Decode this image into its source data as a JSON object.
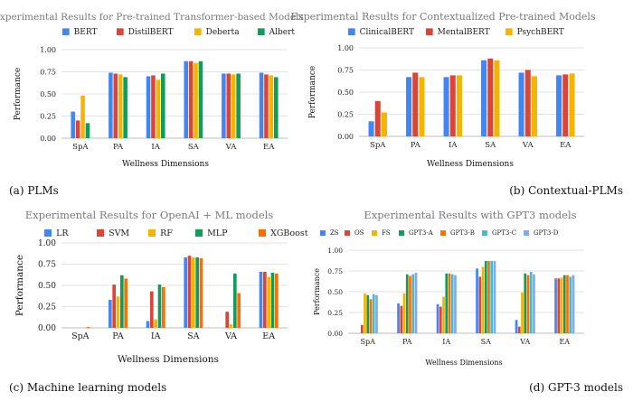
{
  "chart_data": [
    {
      "type": "bar",
      "title": "Experimental Results for Pre-trained Transformer-based Models",
      "caption": "(a) PLMs",
      "xlabel": "Wellness Dimensions",
      "ylabel": "Performance",
      "ylim": [
        0,
        1.0
      ],
      "yticks": [
        "0.00",
        "0.25",
        "0.50",
        "0.75",
        "1.00"
      ],
      "grid": true,
      "legend_position": "top",
      "categories": [
        "SpA",
        "PA",
        "IA",
        "SA",
        "VA",
        "EA"
      ],
      "series": [
        {
          "name": "BERT",
          "color": "#4285f4",
          "values": [
            0.3,
            0.74,
            0.7,
            0.87,
            0.73,
            0.74
          ]
        },
        {
          "name": "DistilBERT",
          "color": "#db4437",
          "values": [
            0.2,
            0.73,
            0.71,
            0.87,
            0.73,
            0.72
          ]
        },
        {
          "name": "Deberta",
          "color": "#f4b400",
          "values": [
            0.48,
            0.72,
            0.66,
            0.85,
            0.72,
            0.71
          ]
        },
        {
          "name": "Albert",
          "color": "#0f9d58",
          "values": [
            0.17,
            0.69,
            0.73,
            0.87,
            0.73,
            0.69
          ]
        }
      ]
    },
    {
      "type": "bar",
      "title": "Experimental Results for Contextualized Pre-trained Models",
      "caption": "(b) Contextual-PLMs",
      "xlabel": "Wellness Dimensions",
      "ylabel": "Performance",
      "ylim": [
        0,
        1.0
      ],
      "yticks": [
        "0.00",
        "0.25",
        "0.50",
        "0.75",
        "1.00"
      ],
      "grid": true,
      "legend_position": "top",
      "categories": [
        "SpA",
        "PA",
        "IA",
        "SA",
        "VA",
        "EA"
      ],
      "series": [
        {
          "name": "ClinicalBERT",
          "color": "#4285f4",
          "values": [
            0.17,
            0.67,
            0.67,
            0.86,
            0.72,
            0.69
          ]
        },
        {
          "name": "MentalBERT",
          "color": "#db4437",
          "values": [
            0.4,
            0.72,
            0.69,
            0.88,
            0.75,
            0.7
          ]
        },
        {
          "name": "PsychBERT",
          "color": "#f4b400",
          "values": [
            0.27,
            0.67,
            0.69,
            0.86,
            0.68,
            0.71
          ]
        }
      ]
    },
    {
      "type": "bar",
      "title": "Experimental Results for OpenAI + ML models",
      "caption": "(c) Machine learning models",
      "xlabel": "Wellness Dimensions",
      "ylabel": "Performance",
      "ylim": [
        0,
        1.0
      ],
      "yticks": [
        "0.00",
        "0.25",
        "0.50",
        "0.75",
        "1.00"
      ],
      "grid": true,
      "legend_position": "top",
      "categories": [
        "SpA",
        "PA",
        "IA",
        "SA",
        "VA",
        "EA"
      ],
      "series": [
        {
          "name": "LR",
          "color": "#4285f4",
          "values": [
            0.0,
            0.33,
            0.08,
            0.83,
            0.0,
            0.66
          ]
        },
        {
          "name": "SVM",
          "color": "#db4437",
          "values": [
            0.0,
            0.51,
            0.43,
            0.85,
            0.19,
            0.66
          ]
        },
        {
          "name": "RF",
          "color": "#f4b400",
          "values": [
            0.0,
            0.37,
            0.1,
            0.83,
            0.04,
            0.6
          ]
        },
        {
          "name": "MLP",
          "color": "#0f9d58",
          "values": [
            0.0,
            0.62,
            0.51,
            0.83,
            0.64,
            0.65
          ]
        },
        {
          "name": "XGBoost",
          "color": "#ff6d01",
          "values": [
            0.01,
            0.58,
            0.48,
            0.82,
            0.41,
            0.64
          ]
        }
      ]
    },
    {
      "type": "bar",
      "title": "Experimental Results with GPT3 models",
      "caption": "(d) GPT-3 models",
      "xlabel": "Wellness Dimensions",
      "ylabel": "Performance",
      "ylim": [
        0,
        1.0
      ],
      "yticks": [
        "0.00",
        "0.25",
        "0.50",
        "0.75",
        "1.00"
      ],
      "grid": true,
      "legend_position": "top",
      "categories": [
        "SpA",
        "PA",
        "IA",
        "SA",
        "VA",
        "EA"
      ],
      "series": [
        {
          "name": "ZS",
          "color": "#4285f4",
          "values": [
            0.0,
            0.36,
            0.35,
            0.78,
            0.16,
            0.66
          ]
        },
        {
          "name": "OS",
          "color": "#db4437",
          "values": [
            0.1,
            0.33,
            0.32,
            0.68,
            0.08,
            0.66
          ]
        },
        {
          "name": "FS",
          "color": "#f4b400",
          "values": [
            0.48,
            0.48,
            0.44,
            0.8,
            0.49,
            0.67
          ]
        },
        {
          "name": "GPT3-A",
          "color": "#0f9d58",
          "values": [
            0.46,
            0.71,
            0.72,
            0.87,
            0.72,
            0.7
          ]
        },
        {
          "name": "GPT3-B",
          "color": "#ff6d01",
          "values": [
            0.41,
            0.69,
            0.72,
            0.87,
            0.7,
            0.7
          ]
        },
        {
          "name": "GPT3-C",
          "color": "#46bdc6",
          "values": [
            0.47,
            0.71,
            0.71,
            0.87,
            0.74,
            0.68
          ]
        },
        {
          "name": "GPT3-D",
          "color": "#7baaf7",
          "values": [
            0.46,
            0.73,
            0.7,
            0.87,
            0.71,
            0.7
          ]
        }
      ]
    }
  ]
}
